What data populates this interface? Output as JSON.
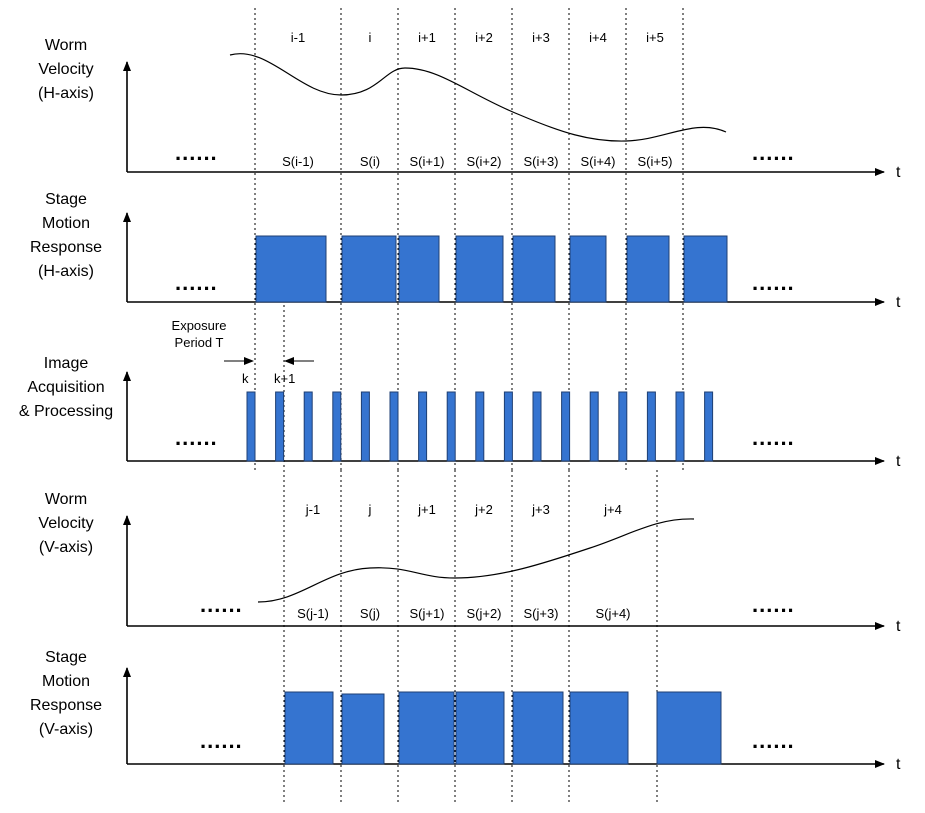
{
  "colors": {
    "block": "#3574D0",
    "block_stroke": "#1f3f73",
    "line": "#000000"
  },
  "panels": {
    "hvel": {
      "label": [
        "Worm",
        "Velocity",
        "(H-axis)"
      ],
      "axis": "t",
      "ellipsis_left": "......",
      "ellipsis_right": "......",
      "top_labels": [
        "i-1",
        "i",
        "i+1",
        "i+2",
        "i+3",
        "i+4",
        "i+5"
      ],
      "segment_labels": [
        "S(i-1)",
        "S(i)",
        "S(i+1)",
        "S(i+2)",
        "S(i+3)",
        "S(i+4)",
        "S(i+5)"
      ]
    },
    "hstage": {
      "label": [
        "Stage",
        "Motion",
        "Response",
        "(H-axis)"
      ],
      "axis": "t",
      "ellipsis_left": "......",
      "ellipsis_right": "......"
    },
    "image": {
      "label": [
        "Image",
        "Acquisition",
        "& Processing"
      ],
      "axis": "t",
      "ellipsis_left": "......",
      "ellipsis_right": "......",
      "exposure_label": [
        "Exposure",
        "Period T"
      ],
      "k_label": "k",
      "k1_label": "k+1"
    },
    "vvel": {
      "label": [
        "Worm",
        "Velocity",
        "(V-axis)"
      ],
      "axis": "t",
      "ellipsis_left": "......",
      "ellipsis_right": "......",
      "top_labels": [
        "j-1",
        "j",
        "j+1",
        "j+2",
        "j+3",
        "j+4"
      ],
      "segment_labels": [
        "S(j-1)",
        "S(j)",
        "S(j+1)",
        "S(j+2)",
        "S(j+3)",
        "S(j+4)"
      ]
    },
    "vstage": {
      "label": [
        "Stage",
        "Motion",
        "Response",
        "(V-axis)"
      ],
      "axis": "t",
      "ellipsis_left": "......",
      "ellipsis_right": "......"
    }
  }
}
